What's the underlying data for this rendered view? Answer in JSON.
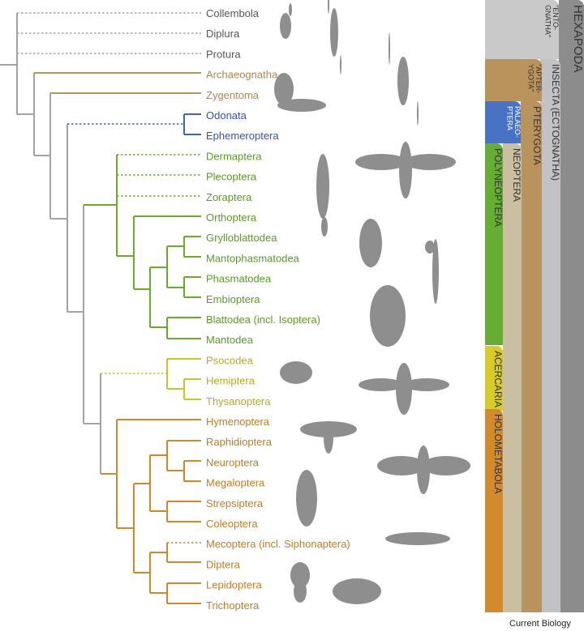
{
  "colors": {
    "grey": "#a3a3a3",
    "tan": "#b8945c",
    "blue": "#4563b5",
    "green": "#6aab2c",
    "yellow": "#c9c42c",
    "orange": "#d0892a"
  },
  "label_colors": {
    "grey": "#555555",
    "tan": "#b08650",
    "blue": "#3552a8",
    "green": "#5b9a25",
    "yellow": "#b3ad1c",
    "orange": "#c27c22"
  },
  "taxa": [
    {
      "name": "Collembola",
      "group": "grey"
    },
    {
      "name": "Diplura",
      "group": "grey"
    },
    {
      "name": "Protura",
      "group": "grey"
    },
    {
      "name": "Archaeognatha",
      "group": "tan"
    },
    {
      "name": "Zygentoma",
      "group": "tan"
    },
    {
      "name": "Odonata",
      "group": "blue"
    },
    {
      "name": "Ephemeroptera",
      "group": "blue"
    },
    {
      "name": "Dermaptera",
      "group": "green"
    },
    {
      "name": "Plecoptera",
      "group": "green"
    },
    {
      "name": "Zoraptera",
      "group": "green"
    },
    {
      "name": "Orthoptera",
      "group": "green"
    },
    {
      "name": "Grylloblattodea",
      "group": "green"
    },
    {
      "name": "Mantophasmatodea",
      "group": "green"
    },
    {
      "name": "Phasmatodea",
      "group": "green"
    },
    {
      "name": "Embioptera",
      "group": "green"
    },
    {
      "name": "Blattodea (incl. Isoptera)",
      "group": "green"
    },
    {
      "name": "Mantodea",
      "group": "green"
    },
    {
      "name": "Psocodea",
      "group": "yellow"
    },
    {
      "name": "Hemiptera",
      "group": "yellow"
    },
    {
      "name": "Thysanoptera",
      "group": "yellow"
    },
    {
      "name": "Hymenoptera",
      "group": "orange"
    },
    {
      "name": "Raphidioptera",
      "group": "orange"
    },
    {
      "name": "Neuroptera",
      "group": "orange"
    },
    {
      "name": "Megaloptera",
      "group": "orange"
    },
    {
      "name": "Strepsiptera",
      "group": "orange"
    },
    {
      "name": "Coleoptera",
      "group": "orange"
    },
    {
      "name": "Mecoptera (incl. Siphonaptera)",
      "group": "orange"
    },
    {
      "name": "Diptera",
      "group": "orange"
    },
    {
      "name": "Lepidoptera",
      "group": "orange"
    },
    {
      "name": "Trichoptera",
      "group": "orange"
    }
  ],
  "clades": {
    "hexapoda": {
      "label": "HEXAPODA",
      "color": "#8c8c8c"
    },
    "entognatha": {
      "label": "\"ENTO-GNATHA\"",
      "color": "#c9c9c9"
    },
    "insecta": {
      "label": "INSECTA (ECTOGNATHA)",
      "color": "#c2c2c4"
    },
    "apterygota": {
      "label": "\"APTER-YGOTA\"",
      "color": "#b8945c"
    },
    "pterygota": {
      "label": "PTERYGOTA",
      "color": "#b8945c"
    },
    "palaeoptera": {
      "label": "PALAEO-PTERA",
      "color": "#4a72c4"
    },
    "neoptera": {
      "label": "NEOPTERA",
      "color": "#cbbfa2"
    },
    "polyneoptera": {
      "label": "POLYNEOPTERA",
      "color": "#67ad34"
    },
    "acercaria": {
      "label": "ACERCARIA",
      "color": "#d6cb2a"
    },
    "holometabola": {
      "label": "HOLOMETABOLA",
      "color": "#d38a2c"
    }
  },
  "credit": "Current Biology"
}
